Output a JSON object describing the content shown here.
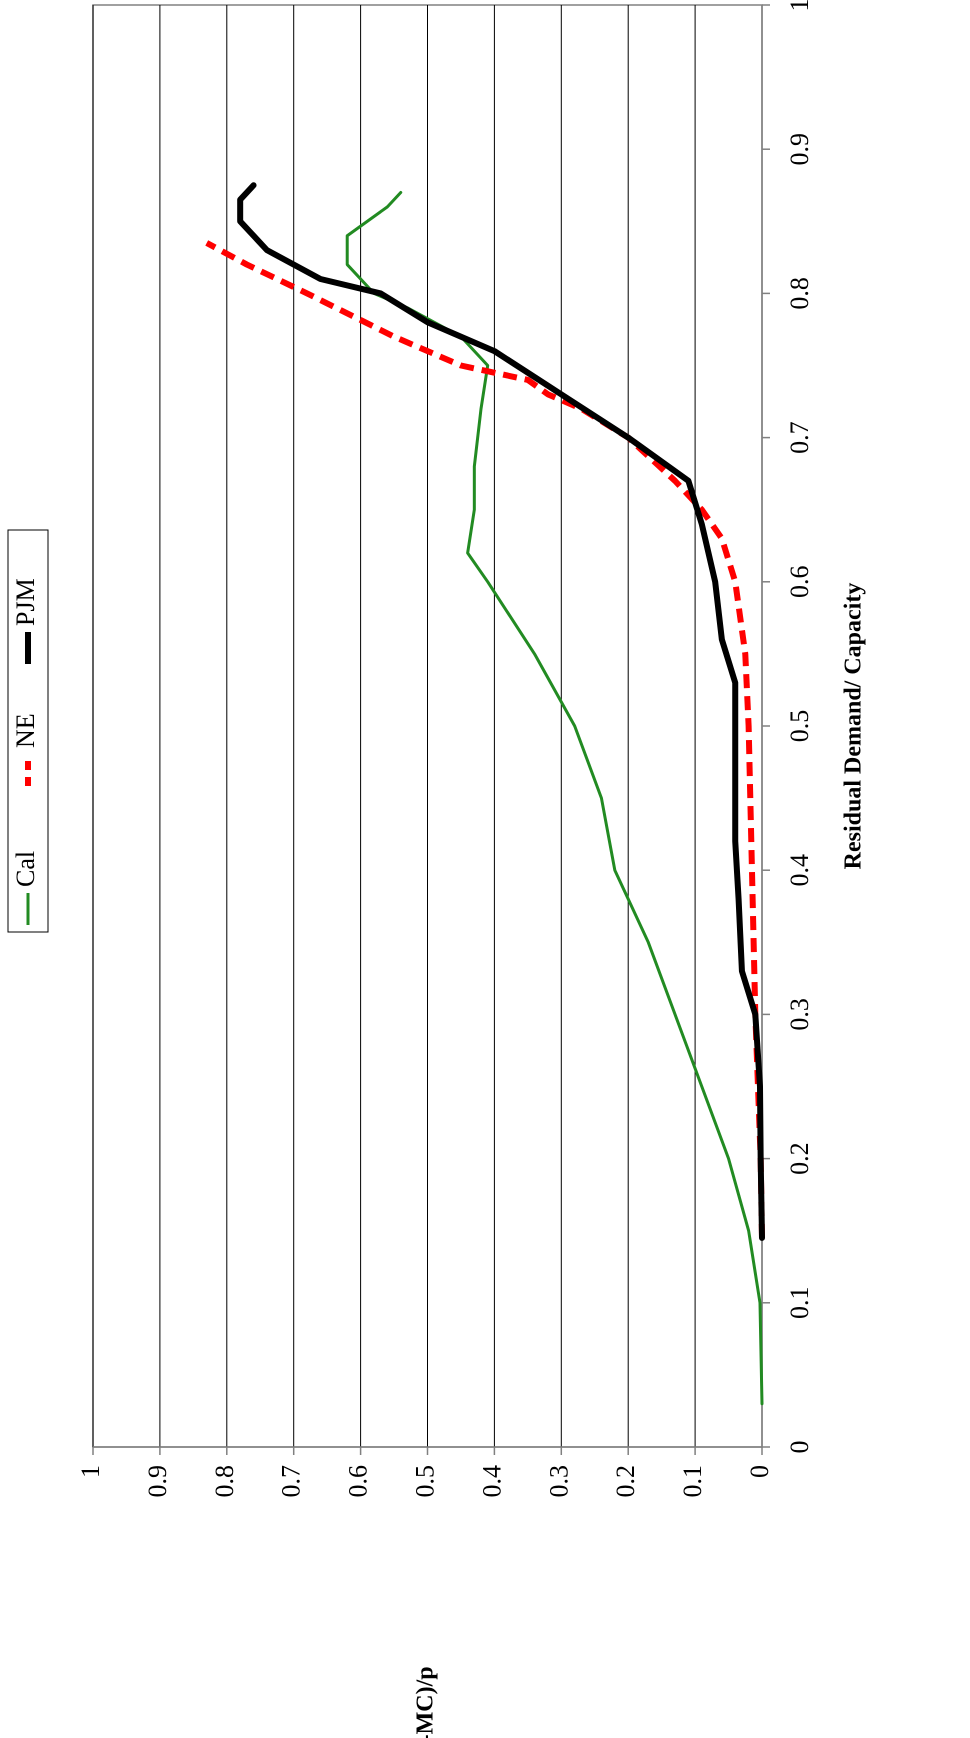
{
  "chart_data": {
    "type": "line",
    "xlabel": "Residual Demand/ Capacity",
    "ylabel": "(p-MC)/p",
    "xlim": [
      0,
      1
    ],
    "xticks": [
      0,
      0.1,
      0.2,
      0.3,
      0.4,
      0.5,
      0.6,
      0.7,
      0.8,
      0.9,
      1
    ],
    "ylim": [
      0,
      1
    ],
    "yticks": [
      0,
      0.1,
      0.2,
      0.3,
      0.4,
      0.5,
      0.6,
      0.7,
      0.8,
      0.9,
      1
    ],
    "grid": true,
    "legend": "top",
    "series": [
      {
        "name": "Cal",
        "color": "#228b22",
        "style": "solid",
        "width": 3,
        "x": [
          0.03,
          0.1,
          0.15,
          0.2,
          0.25,
          0.3,
          0.35,
          0.4,
          0.45,
          0.5,
          0.55,
          0.6,
          0.62,
          0.65,
          0.68,
          0.72,
          0.75,
          0.77,
          0.79,
          0.8,
          0.82,
          0.84,
          0.86,
          0.87
        ],
        "values": [
          0,
          0.003,
          0.02,
          0.05,
          0.09,
          0.13,
          0.17,
          0.22,
          0.24,
          0.28,
          0.34,
          0.41,
          0.44,
          0.43,
          0.43,
          0.42,
          0.41,
          0.45,
          0.53,
          0.58,
          0.62,
          0.62,
          0.56,
          0.54
        ]
      },
      {
        "name": "NE",
        "color": "#ff0000",
        "style": "dashed",
        "width": 6,
        "x": [
          0.145,
          0.2,
          0.3,
          0.4,
          0.5,
          0.55,
          0.6,
          0.63,
          0.65,
          0.67,
          0.7,
          0.72,
          0.73,
          0.74,
          0.75,
          0.77,
          0.8,
          0.82,
          0.835
        ],
        "values": [
          0,
          0.002,
          0.01,
          0.015,
          0.02,
          0.025,
          0.04,
          0.06,
          0.09,
          0.13,
          0.2,
          0.27,
          0.32,
          0.35,
          0.45,
          0.55,
          0.68,
          0.77,
          0.83
        ]
      },
      {
        "name": "PJM",
        "color": "#000000",
        "style": "solid",
        "width": 6,
        "x": [
          0.145,
          0.2,
          0.25,
          0.3,
          0.33,
          0.38,
          0.42,
          0.45,
          0.5,
          0.53,
          0.56,
          0.6,
          0.64,
          0.67,
          0.7,
          0.73,
          0.76,
          0.78,
          0.8,
          0.81,
          0.83,
          0.85,
          0.865,
          0.875
        ],
        "values": [
          0,
          0.002,
          0.003,
          0.01,
          0.03,
          0.035,
          0.04,
          0.04,
          0.04,
          0.04,
          0.06,
          0.07,
          0.09,
          0.11,
          0.2,
          0.3,
          0.4,
          0.5,
          0.57,
          0.66,
          0.74,
          0.78,
          0.78,
          0.76
        ]
      }
    ]
  }
}
